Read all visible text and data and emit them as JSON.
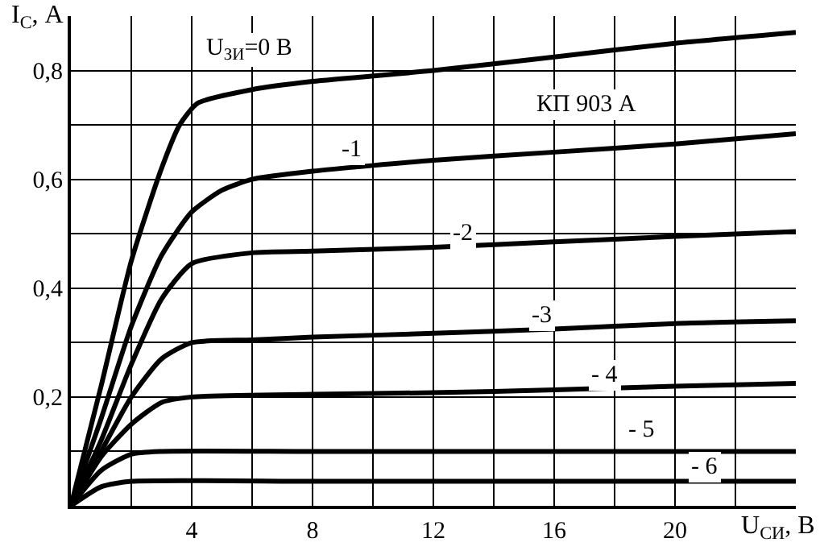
{
  "chart_data": {
    "type": "line",
    "xlabel": "U$_{СИ}$, В",
    "ylabel": "I$_{С}$, А",
    "xlim": [
      0,
      24
    ],
    "ylim": [
      0,
      0.9
    ],
    "xticks": [
      {
        "value": 2,
        "label": null
      },
      4,
      {
        "value": 6,
        "label": null
      },
      8,
      {
        "value": 10,
        "label": null
      },
      12,
      {
        "value": 14,
        "label": null
      },
      16,
      {
        "value": 18,
        "label": null
      },
      20,
      {
        "value": 22,
        "label": null
      }
    ],
    "yticks": [
      {
        "value": 0.1,
        "label": null
      },
      {
        "value": 0.2,
        "label": "0,2"
      },
      {
        "value": 0.3,
        "label": null
      },
      {
        "value": 0.4,
        "label": "0,4"
      },
      {
        "value": 0.5,
        "label": null
      },
      {
        "value": 0.6,
        "label": "0,6"
      },
      {
        "value": 0.7,
        "label": null
      },
      {
        "value": 0.8,
        "label": "0,8"
      }
    ],
    "grid": true,
    "marker": "none",
    "line_style": "solid",
    "series": [
      {
        "color": "#000000",
        "x": [
          0,
          1,
          2,
          3,
          3.6,
          4.2,
          6,
          8,
          12,
          16,
          20,
          24
        ],
        "values": [
          0,
          0.22,
          0.45,
          0.62,
          0.7,
          0.74,
          0.765,
          0.78,
          0.8,
          0.825,
          0.85,
          0.87
        ]
      },
      {
        "color": "#000000",
        "x": [
          0,
          1,
          2,
          3,
          4,
          5,
          6,
          8,
          12,
          16,
          20,
          24
        ],
        "values": [
          0,
          0.16,
          0.33,
          0.46,
          0.54,
          0.58,
          0.6,
          0.615,
          0.635,
          0.65,
          0.665,
          0.684
        ]
      },
      {
        "color": "#000000",
        "x": [
          0,
          1,
          2,
          3,
          4,
          6,
          8,
          12,
          16,
          20,
          24
        ],
        "values": [
          0,
          0.12,
          0.26,
          0.38,
          0.445,
          0.465,
          0.468,
          0.475,
          0.485,
          0.495,
          0.504
        ]
      },
      {
        "color": "#000000",
        "x": [
          0,
          1,
          2,
          3,
          4,
          6,
          8,
          12,
          16,
          20,
          24
        ],
        "values": [
          0,
          0.1,
          0.2,
          0.27,
          0.3,
          0.305,
          0.31,
          0.317,
          0.325,
          0.335,
          0.34
        ]
      },
      {
        "color": "#000000",
        "x": [
          0,
          1,
          2,
          3,
          4,
          8,
          12,
          16,
          20,
          24
        ],
        "values": [
          0,
          0.09,
          0.15,
          0.19,
          0.2,
          0.205,
          0.208,
          0.213,
          0.22,
          0.225
        ]
      },
      {
        "color": "#000000",
        "x": [
          0,
          1,
          2,
          3,
          8,
          16,
          24
        ],
        "values": [
          0,
          0.065,
          0.095,
          0.1,
          0.1,
          0.1,
          0.1
        ]
      },
      {
        "color": "#000000",
        "x": [
          0,
          1,
          2,
          8,
          16,
          24
        ],
        "values": [
          0,
          0.035,
          0.045,
          0.045,
          0.045,
          0.045
        ]
      }
    ],
    "annotations": [
      "U$_{ЗИ}$=0 В",
      {
        "text": "-1",
        "x": 9.3,
        "y": 0.655
      },
      {
        "text": "-2",
        "x": 13,
        "y": 0.5
      },
      {
        "text": "-3",
        "x": 15.6,
        "y": 0.35
      },
      {
        "text": "- 4",
        "x": 17.7,
        "y": 0.24
      },
      {
        "text": "- 5",
        "x": 18.9,
        "y": 0.14
      },
      {
        "text": "- 6",
        "x": 21,
        "y": 0.07
      },
      "КП 903 А"
    ]
  }
}
